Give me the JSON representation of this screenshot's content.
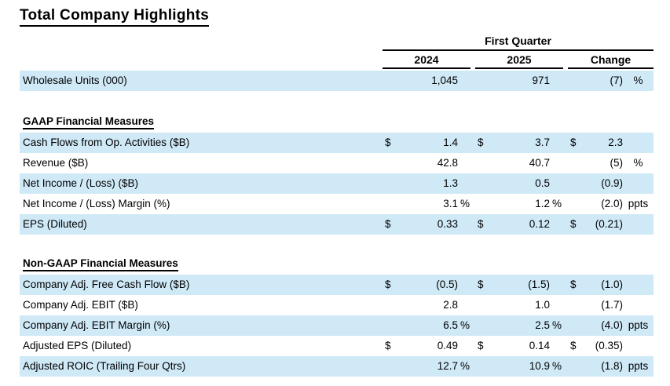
{
  "title": "Total Company Highlights",
  "header": {
    "group_label": "First Quarter",
    "columns": [
      "2024",
      "2025",
      "Change"
    ]
  },
  "sections": {
    "gaap": "GAAP Financial Measures",
    "non_gaap": "Non-GAAP Financial Measures"
  },
  "rows": [
    {
      "label": "Wholesale Units (000)",
      "y2024": {
        "dollar": "",
        "value": "1,045",
        "unit": ""
      },
      "y2025": {
        "dollar": "",
        "value": "971",
        "unit": ""
      },
      "change": {
        "dollar": "",
        "value": "(7)",
        "unit": "%"
      }
    },
    {
      "label": "Cash Flows from Op. Activities ($B)",
      "y2024": {
        "dollar": "$",
        "value": "1.4",
        "unit": ""
      },
      "y2025": {
        "dollar": "$",
        "value": "3.7",
        "unit": ""
      },
      "change": {
        "dollar": "$",
        "value": "2.3",
        "unit": ""
      }
    },
    {
      "label": "Revenue ($B)",
      "y2024": {
        "dollar": "",
        "value": "42.8",
        "unit": ""
      },
      "y2025": {
        "dollar": "",
        "value": "40.7",
        "unit": ""
      },
      "change": {
        "dollar": "",
        "value": "(5)",
        "unit": "%"
      }
    },
    {
      "label": "Net Income / (Loss) ($B)",
      "y2024": {
        "dollar": "",
        "value": "1.3",
        "unit": ""
      },
      "y2025": {
        "dollar": "",
        "value": "0.5",
        "unit": ""
      },
      "change": {
        "dollar": "",
        "value": "(0.9)",
        "unit": ""
      }
    },
    {
      "label": "Net Income / (Loss) Margin (%)",
      "y2024": {
        "dollar": "",
        "value": "3.1",
        "unit": "%"
      },
      "y2025": {
        "dollar": "",
        "value": "1.2",
        "unit": "%"
      },
      "change": {
        "dollar": "",
        "value": "(2.0)",
        "unit": "ppts"
      }
    },
    {
      "label": "EPS (Diluted)",
      "y2024": {
        "dollar": "$",
        "value": "0.33",
        "unit": ""
      },
      "y2025": {
        "dollar": "$",
        "value": "0.12",
        "unit": ""
      },
      "change": {
        "dollar": "$",
        "value": "(0.21)",
        "unit": ""
      }
    },
    {
      "label": "Company Adj. Free Cash Flow ($B)",
      "y2024": {
        "dollar": "$",
        "value": "(0.5)",
        "unit": ""
      },
      "y2025": {
        "dollar": "$",
        "value": "(1.5)",
        "unit": ""
      },
      "change": {
        "dollar": "$",
        "value": "(1.0)",
        "unit": ""
      }
    },
    {
      "label": "Company Adj. EBIT ($B)",
      "y2024": {
        "dollar": "",
        "value": "2.8",
        "unit": ""
      },
      "y2025": {
        "dollar": "",
        "value": "1.0",
        "unit": ""
      },
      "change": {
        "dollar": "",
        "value": "(1.7)",
        "unit": ""
      }
    },
    {
      "label": "Company Adj. EBIT Margin (%)",
      "y2024": {
        "dollar": "",
        "value": "6.5",
        "unit": "%"
      },
      "y2025": {
        "dollar": "",
        "value": "2.5",
        "unit": "%"
      },
      "change": {
        "dollar": "",
        "value": "(4.0)",
        "unit": "ppts"
      }
    },
    {
      "label": "Adjusted EPS (Diluted)",
      "y2024": {
        "dollar": "$",
        "value": "0.49",
        "unit": ""
      },
      "y2025": {
        "dollar": "$",
        "value": "0.14",
        "unit": ""
      },
      "change": {
        "dollar": "$",
        "value": "(0.35)",
        "unit": ""
      }
    },
    {
      "label": "Adjusted ROIC (Trailing Four Qtrs)",
      "y2024": {
        "dollar": "",
        "value": "12.7",
        "unit": "%"
      },
      "y2025": {
        "dollar": "",
        "value": "10.9",
        "unit": "%"
      },
      "change": {
        "dollar": "",
        "value": "(1.8)",
        "unit": "ppts"
      }
    }
  ],
  "colors": {
    "row_shade": "#cfe9f7",
    "text": "#000000",
    "rule": "#000000"
  }
}
